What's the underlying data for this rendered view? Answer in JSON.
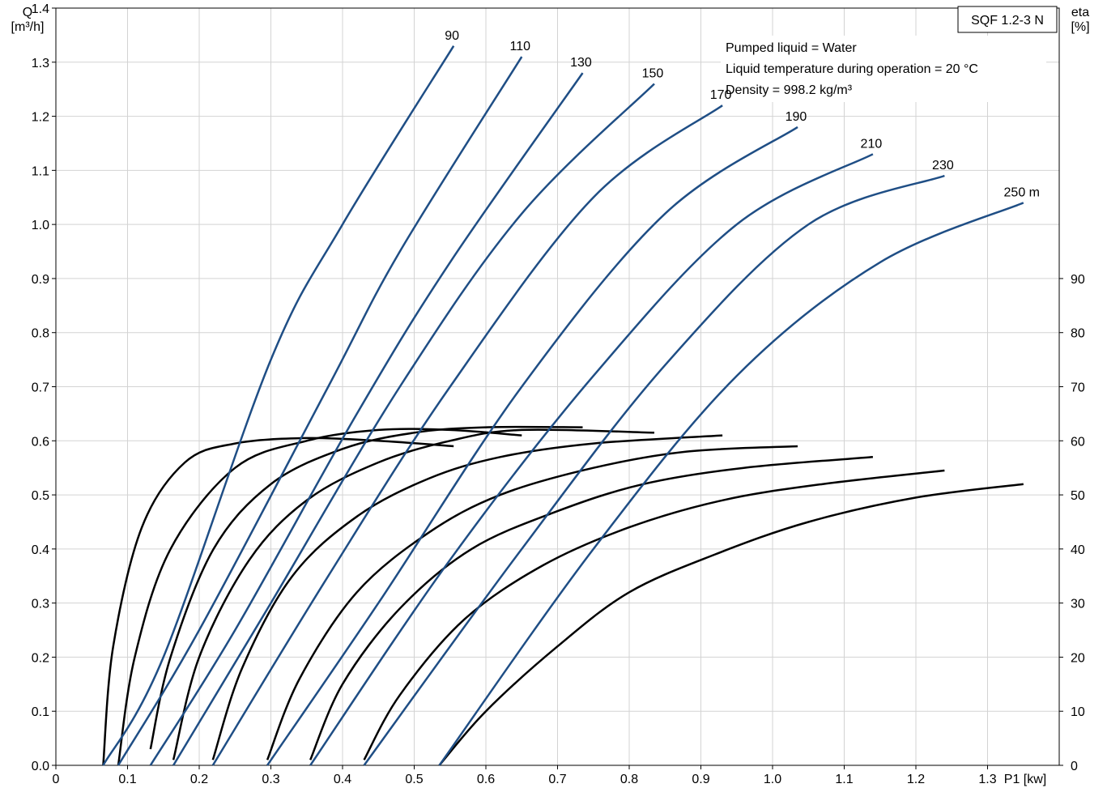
{
  "chart_data": {
    "type": "line",
    "model_label": "SQF 1.2-3 N",
    "x_axis": {
      "label": "P1 [kw]",
      "range": [
        0,
        1.4
      ],
      "ticks": [
        "0",
        "0.1",
        "0.2",
        "0.3",
        "0.4",
        "0.5",
        "0.6",
        "0.7",
        "0.8",
        "0.9",
        "1.0",
        "1.1",
        "1.2",
        "1.3"
      ]
    },
    "y_left": {
      "label_line1": "Q",
      "label_line2": "[m³/h]",
      "range": [
        0,
        1.4
      ],
      "ticks": [
        "0.0",
        "0.1",
        "0.2",
        "0.3",
        "0.4",
        "0.5",
        "0.6",
        "0.7",
        "0.8",
        "0.9",
        "1.0",
        "1.1",
        "1.2",
        "1.3",
        "1.4"
      ]
    },
    "y_right": {
      "label_line1": "eta",
      "label_line2": "[%]",
      "range": [
        0,
        140
      ],
      "ticks": [
        "0",
        "10",
        "20",
        "30",
        "40",
        "50",
        "60",
        "70",
        "80",
        "90"
      ]
    },
    "notes": [
      "Pumped liquid = Water",
      "Liquid temperature during operation = 20 °C",
      "Density = 998.2 kg/m³"
    ],
    "grid": true,
    "flow_series": [
      {
        "label": "90",
        "points": [
          [
            0.066,
            0.0
          ],
          [
            0.15,
            0.2
          ],
          [
            0.3,
            0.75
          ],
          [
            0.4,
            1.0
          ],
          [
            0.555,
            1.33
          ]
        ]
      },
      {
        "label": "110",
        "points": [
          [
            0.087,
            0.0
          ],
          [
            0.2,
            0.25
          ],
          [
            0.38,
            0.7
          ],
          [
            0.48,
            0.95
          ],
          [
            0.65,
            1.31
          ]
        ]
      },
      {
        "label": "130",
        "points": [
          [
            0.132,
            0.0
          ],
          [
            0.25,
            0.25
          ],
          [
            0.42,
            0.65
          ],
          [
            0.55,
            0.93
          ],
          [
            0.735,
            1.28
          ]
        ]
      },
      {
        "label": "150",
        "points": [
          [
            0.164,
            0.0
          ],
          [
            0.3,
            0.3
          ],
          [
            0.48,
            0.7
          ],
          [
            0.65,
            1.02
          ],
          [
            0.835,
            1.26
          ]
        ]
      },
      {
        "label": "170",
        "points": [
          [
            0.219,
            0.0
          ],
          [
            0.38,
            0.35
          ],
          [
            0.55,
            0.7
          ],
          [
            0.75,
            1.05
          ],
          [
            0.93,
            1.22
          ]
        ]
      },
      {
        "label": "190",
        "points": [
          [
            0.295,
            0.0
          ],
          [
            0.45,
            0.3
          ],
          [
            0.65,
            0.7
          ],
          [
            0.85,
            1.02
          ],
          [
            1.035,
            1.18
          ]
        ]
      },
      {
        "label": "210",
        "points": [
          [
            0.355,
            0.0
          ],
          [
            0.55,
            0.38
          ],
          [
            0.75,
            0.72
          ],
          [
            0.95,
            1.0
          ],
          [
            1.14,
            1.13
          ]
        ]
      },
      {
        "label": "230",
        "points": [
          [
            0.43,
            0.0
          ],
          [
            0.65,
            0.4
          ],
          [
            0.85,
            0.74
          ],
          [
            1.05,
            1.0
          ],
          [
            1.24,
            1.09
          ]
        ]
      },
      {
        "label": "250 m",
        "points": [
          [
            0.535,
            0.0
          ],
          [
            0.75,
            0.4
          ],
          [
            0.95,
            0.72
          ],
          [
            1.15,
            0.93
          ],
          [
            1.35,
            1.04
          ]
        ]
      }
    ],
    "efficiency_series": [
      {
        "points": [
          [
            0.066,
            0
          ],
          [
            0.08,
            22
          ],
          [
            0.12,
            44
          ],
          [
            0.18,
            56
          ],
          [
            0.25,
            59.5
          ],
          [
            0.35,
            60.5
          ],
          [
            0.45,
            60
          ],
          [
            0.555,
            59
          ]
        ]
      },
      {
        "points": [
          [
            0.087,
            0
          ],
          [
            0.11,
            20
          ],
          [
            0.16,
            40
          ],
          [
            0.25,
            55
          ],
          [
            0.35,
            60
          ],
          [
            0.45,
            62
          ],
          [
            0.55,
            62
          ],
          [
            0.65,
            61
          ]
        ]
      },
      {
        "points": [
          [
            0.132,
            3
          ],
          [
            0.16,
            20
          ],
          [
            0.22,
            40
          ],
          [
            0.3,
            52
          ],
          [
            0.4,
            58.5
          ],
          [
            0.5,
            61.5
          ],
          [
            0.6,
            62.5
          ],
          [
            0.735,
            62.5
          ]
        ]
      },
      {
        "points": [
          [
            0.164,
            1
          ],
          [
            0.2,
            20
          ],
          [
            0.27,
            38
          ],
          [
            0.35,
            49
          ],
          [
            0.45,
            56
          ],
          [
            0.55,
            60
          ],
          [
            0.65,
            62
          ],
          [
            0.835,
            61.5
          ]
        ]
      },
      {
        "points": [
          [
            0.219,
            1
          ],
          [
            0.26,
            18
          ],
          [
            0.33,
            35
          ],
          [
            0.42,
            46
          ],
          [
            0.52,
            53
          ],
          [
            0.62,
            57
          ],
          [
            0.75,
            59.5
          ],
          [
            0.93,
            61
          ]
        ]
      },
      {
        "points": [
          [
            0.295,
            1
          ],
          [
            0.34,
            16
          ],
          [
            0.42,
            32
          ],
          [
            0.52,
            43
          ],
          [
            0.62,
            50
          ],
          [
            0.75,
            55
          ],
          [
            0.88,
            58
          ],
          [
            1.035,
            59
          ]
        ]
      },
      {
        "points": [
          [
            0.355,
            1
          ],
          [
            0.4,
            15
          ],
          [
            0.48,
            29
          ],
          [
            0.58,
            40
          ],
          [
            0.7,
            47
          ],
          [
            0.82,
            52
          ],
          [
            0.96,
            55
          ],
          [
            1.14,
            57
          ]
        ]
      },
      {
        "points": [
          [
            0.43,
            1
          ],
          [
            0.48,
            13
          ],
          [
            0.57,
            27
          ],
          [
            0.68,
            37
          ],
          [
            0.8,
            44
          ],
          [
            0.93,
            49
          ],
          [
            1.07,
            52
          ],
          [
            1.24,
            54.5
          ]
        ]
      },
      {
        "points": [
          [
            0.535,
            0
          ],
          [
            0.6,
            10
          ],
          [
            0.7,
            22
          ],
          [
            0.8,
            32
          ],
          [
            0.92,
            39
          ],
          [
            1.05,
            45
          ],
          [
            1.2,
            49.5
          ],
          [
            1.35,
            52
          ]
        ]
      }
    ]
  }
}
